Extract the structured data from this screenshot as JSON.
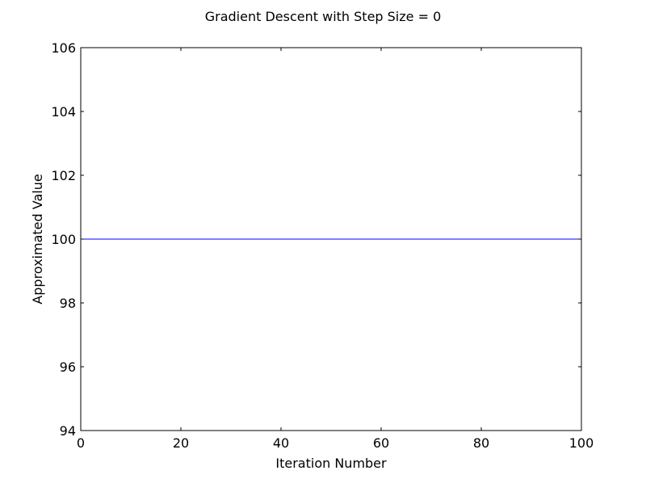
{
  "chart_data": {
    "type": "line",
    "title": "Gradient Descent with Step Size = 0",
    "xlabel": "Iteration Number",
    "ylabel": "Approximated Value",
    "xlim": [
      0,
      100
    ],
    "ylim": [
      94,
      106
    ],
    "xticks": [
      0,
      20,
      40,
      60,
      80,
      100
    ],
    "yticks": [
      94,
      96,
      98,
      100,
      102,
      104,
      106
    ],
    "grid": false,
    "series": [
      {
        "color": "#0000ff",
        "x": [
          0,
          100
        ],
        "y": [
          100,
          100
        ]
      }
    ]
  }
}
